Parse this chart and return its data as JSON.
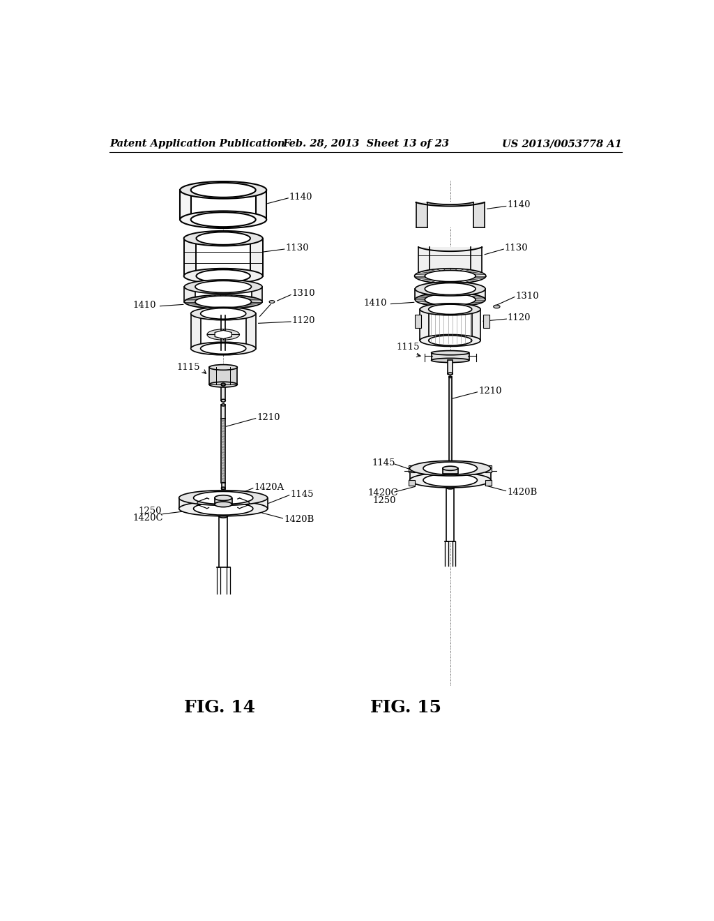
{
  "page_background": "#ffffff",
  "header_left": "Patent Application Publication",
  "header_mid": "Feb. 28, 2013  Sheet 13 of 23",
  "header_right": "US 2013/0053778 A1",
  "fig14_label": "FIG. 14",
  "fig15_label": "FIG. 15",
  "fig_label_fontsize": 18,
  "header_fontsize": 10.5,
  "annotation_fontsize": 9.5,
  "line_color": "#000000",
  "line_width": 1.2
}
